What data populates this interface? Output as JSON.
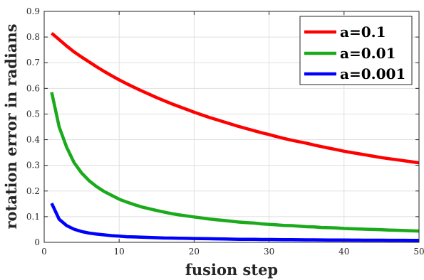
{
  "chart_data": {
    "type": "line",
    "xlabel": "fusion step",
    "ylabel": "rotation error in radians",
    "xlim": [
      0,
      50
    ],
    "ylim": [
      0,
      0.9
    ],
    "xticks": [
      0,
      10,
      20,
      30,
      40,
      50
    ],
    "yticks": [
      0,
      0.1,
      0.2,
      0.3,
      0.4,
      0.5,
      0.6,
      0.7,
      0.8,
      0.9
    ],
    "xtick_labels": [
      "0",
      "10",
      "20",
      "30",
      "40",
      "50"
    ],
    "ytick_labels": [
      "0",
      "0.1",
      "0.2",
      "0.3",
      "0.4",
      "0.5",
      "0.6",
      "0.7",
      "0.8",
      "0.9"
    ],
    "grid": true,
    "legend_position": "top-right",
    "x": [
      1,
      2,
      3,
      4,
      5,
      6,
      7,
      8,
      9,
      10,
      11,
      12,
      13,
      14,
      15,
      16,
      17,
      18,
      19,
      20,
      21,
      22,
      23,
      24,
      25,
      26,
      27,
      28,
      29,
      30,
      31,
      32,
      33,
      34,
      35,
      36,
      37,
      38,
      39,
      40,
      41,
      42,
      43,
      44,
      45,
      46,
      47,
      48,
      49,
      50
    ],
    "series": [
      {
        "name": "a=0.1",
        "color": "#ff0000",
        "values": [
          0.815,
          0.79,
          0.765,
          0.742,
          0.722,
          0.703,
          0.684,
          0.666,
          0.649,
          0.633,
          0.618,
          0.604,
          0.59,
          0.577,
          0.564,
          0.552,
          0.54,
          0.529,
          0.518,
          0.507,
          0.497,
          0.487,
          0.478,
          0.469,
          0.46,
          0.451,
          0.443,
          0.435,
          0.427,
          0.42,
          0.412,
          0.405,
          0.398,
          0.392,
          0.386,
          0.379,
          0.373,
          0.367,
          0.361,
          0.355,
          0.35,
          0.345,
          0.34,
          0.335,
          0.33,
          0.326,
          0.322,
          0.318,
          0.314,
          0.31
        ]
      },
      {
        "name": "a=0.01",
        "color": "#1aaa1a",
        "values": [
          0.585,
          0.45,
          0.37,
          0.31,
          0.27,
          0.24,
          0.217,
          0.198,
          0.183,
          0.168,
          0.157,
          0.147,
          0.138,
          0.131,
          0.124,
          0.118,
          0.112,
          0.107,
          0.103,
          0.099,
          0.095,
          0.091,
          0.088,
          0.085,
          0.082,
          0.079,
          0.077,
          0.075,
          0.072,
          0.07,
          0.068,
          0.066,
          0.065,
          0.063,
          0.061,
          0.06,
          0.058,
          0.057,
          0.056,
          0.054,
          0.053,
          0.052,
          0.051,
          0.05,
          0.049,
          0.048,
          0.047,
          0.046,
          0.045,
          0.044
        ]
      },
      {
        "name": "a=0.001",
        "color": "#0000ff",
        "values": [
          0.152,
          0.09,
          0.065,
          0.051,
          0.042,
          0.036,
          0.032,
          0.029,
          0.026,
          0.024,
          0.022,
          0.021,
          0.02,
          0.019,
          0.018,
          0.017,
          0.0165,
          0.016,
          0.0155,
          0.015,
          0.0145,
          0.014,
          0.0135,
          0.013,
          0.0125,
          0.012,
          0.0118,
          0.0115,
          0.0112,
          0.011,
          0.0107,
          0.0105,
          0.0102,
          0.01,
          0.0098,
          0.0096,
          0.0094,
          0.0092,
          0.009,
          0.0088,
          0.0087,
          0.0085,
          0.0084,
          0.0083,
          0.0082,
          0.0081,
          0.008,
          0.0079,
          0.0078,
          0.0077
        ]
      }
    ]
  }
}
